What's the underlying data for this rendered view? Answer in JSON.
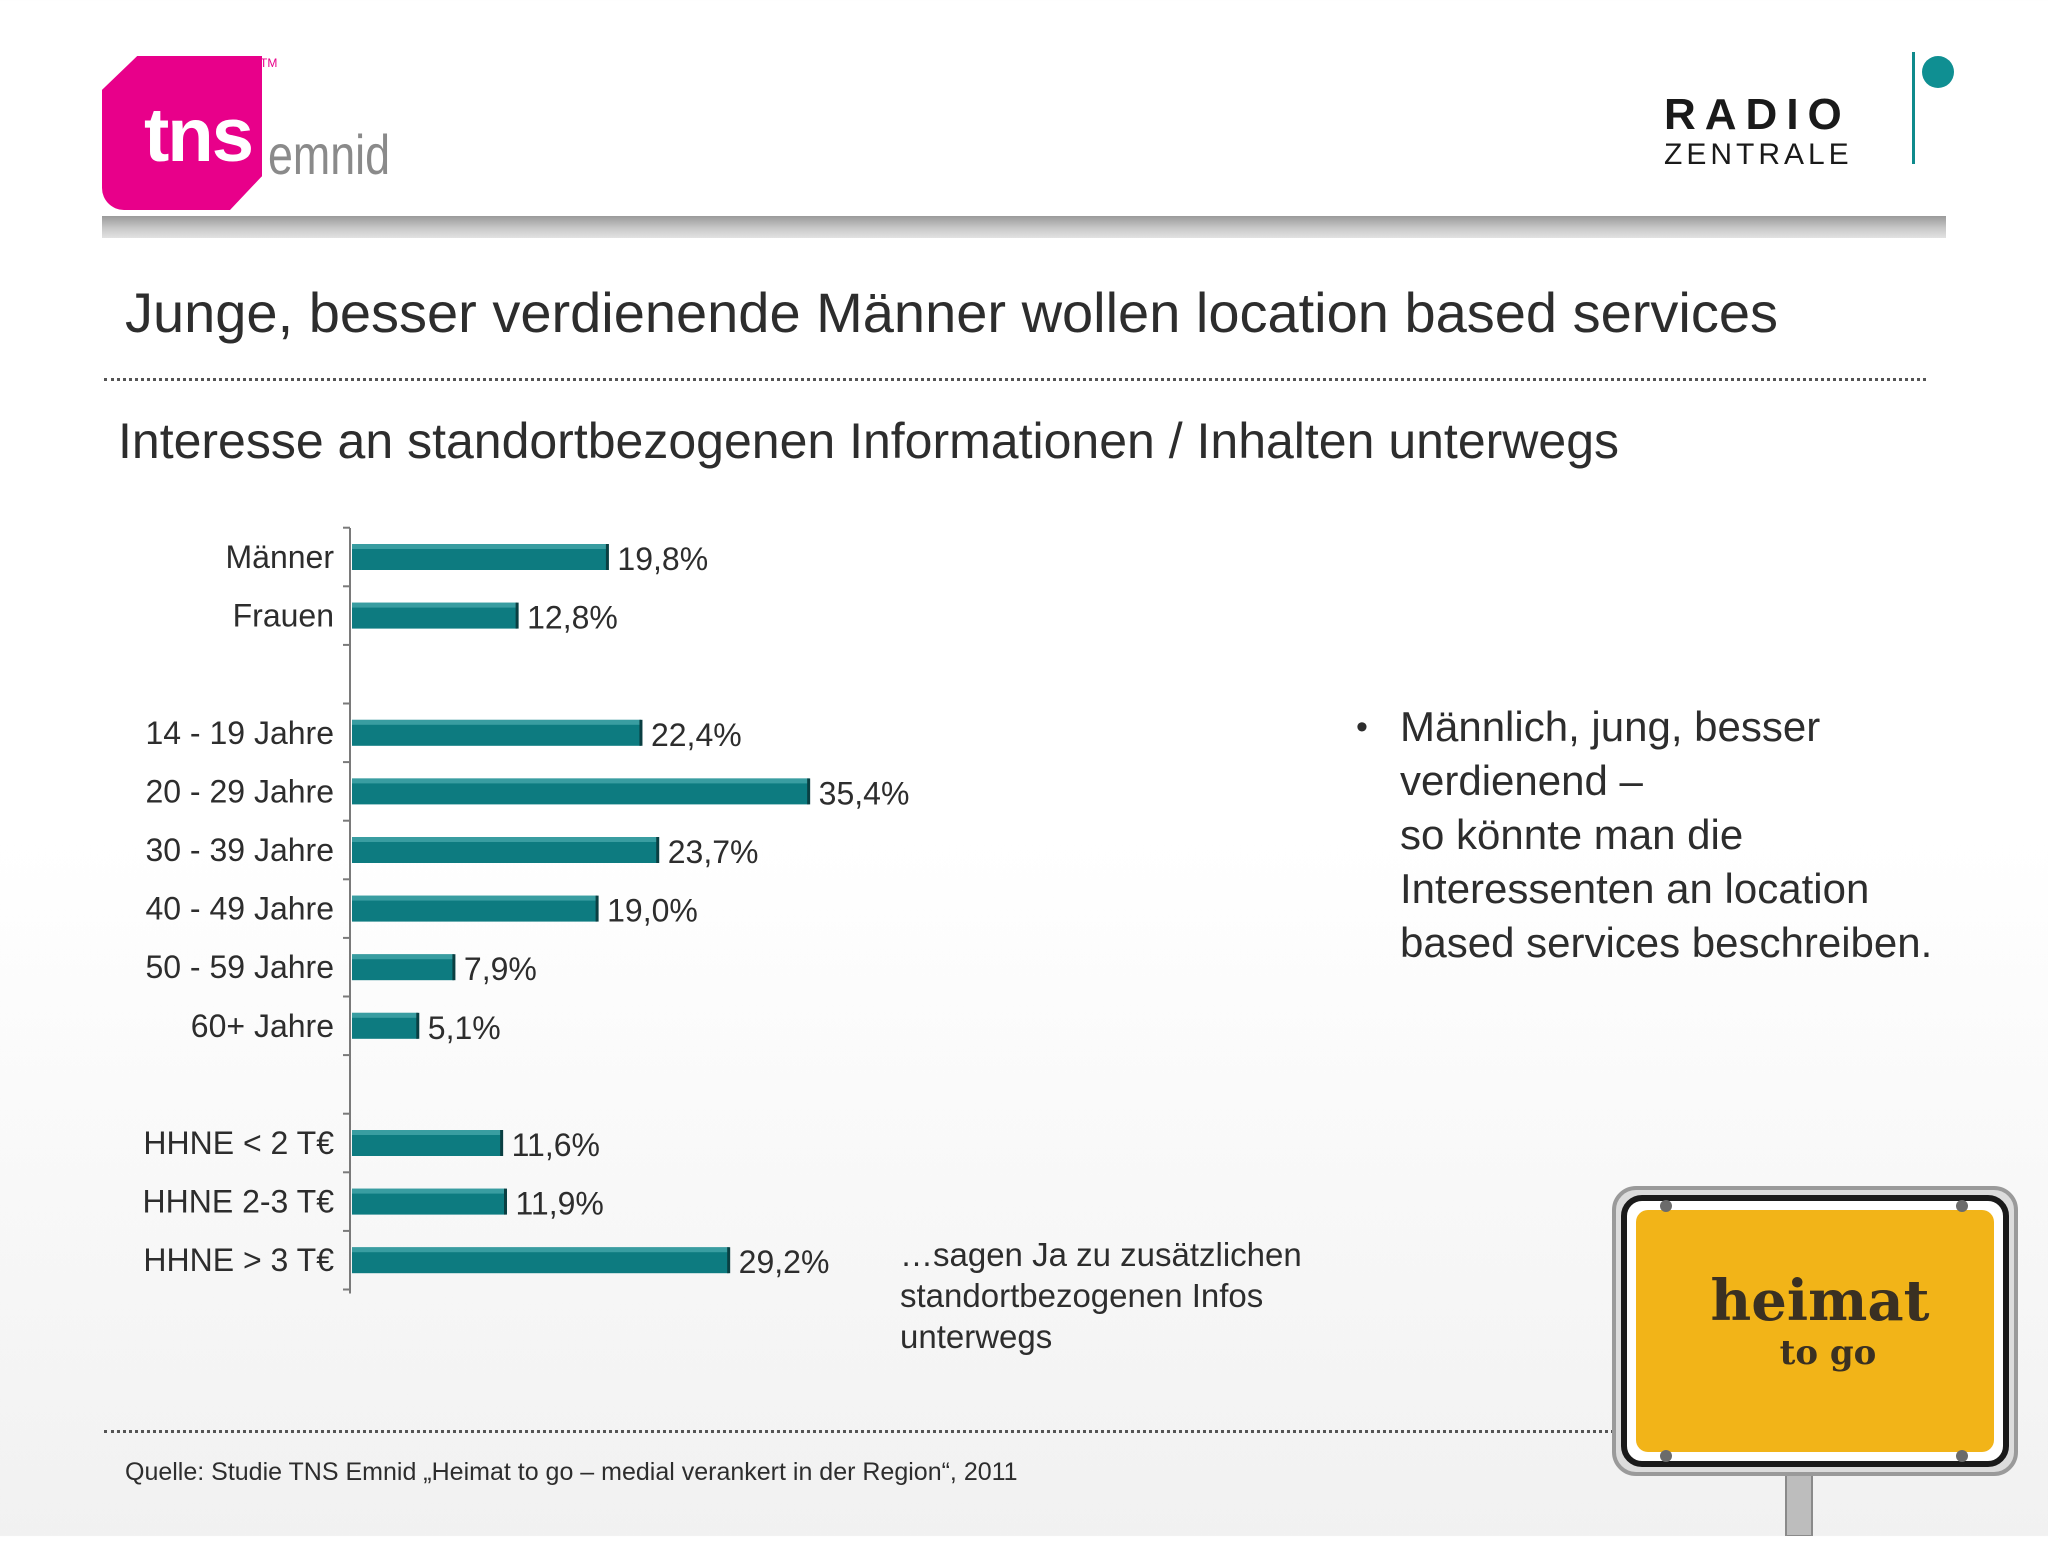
{
  "logos": {
    "tns_text": "tns",
    "tns_tm": "TM",
    "emnid_text": "emnid",
    "radio_word": "RADIO",
    "zentrale_word": "ZENTRALE",
    "tns_color": "#e8008a",
    "radio_accent": "#0f8f92"
  },
  "title": "Junge, besser verdienende Männer wollen location based services",
  "subtitle": "Interesse an standortbezogenen Informationen / Inhalten unterwegs",
  "chart_data": {
    "type": "bar",
    "orientation": "horizontal",
    "bar_color": "#0d7b80",
    "groups": [
      {
        "categories": [
          "Männer",
          "Frauen"
        ],
        "values": [
          19.8,
          12.8
        ],
        "labels": [
          "19,8%",
          "12,8%"
        ]
      },
      {
        "categories": [
          "14 - 19 Jahre",
          "20 - 29 Jahre",
          "30 - 39 Jahre",
          "40 - 49 Jahre",
          "50 - 59 Jahre",
          "60+ Jahre"
        ],
        "values": [
          22.4,
          35.4,
          23.7,
          19.0,
          7.9,
          5.1
        ],
        "labels": [
          "22,4%",
          "35,4%",
          "23,7%",
          "19,0%",
          "7,9%",
          "5,1%"
        ]
      },
      {
        "categories": [
          "HHNE < 2 T€",
          "HHNE 2-3 T€",
          "HHNE > 3 T€"
        ],
        "values": [
          11.6,
          11.9,
          29.2
        ],
        "labels": [
          "11,6%",
          "11,9%",
          "29,2%"
        ]
      }
    ],
    "xlim": [
      0,
      40
    ],
    "grid": false,
    "axis_labels_shown": false
  },
  "bullet": {
    "lines": [
      "Männlich, jung, besser",
      "verdienend –",
      "so könnte man die",
      "Interessenten an location",
      "based services beschreiben."
    ]
  },
  "note": {
    "lines": [
      "…sagen Ja zu zusätzlichen",
      "standortbezogenen Infos",
      "unterwegs"
    ]
  },
  "sign": {
    "word": "heimat",
    "sub": "to go",
    "color": "#f2b418"
  },
  "source": "Quelle: Studie TNS Emnid „Heimat to go  – medial verankert in der Region“, 2011"
}
